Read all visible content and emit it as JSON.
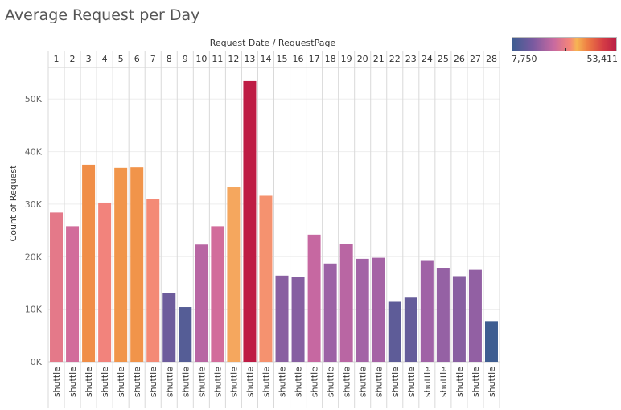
{
  "title": "Average Request per Day",
  "chart_data": {
    "type": "bar",
    "column_header": "Request Date  /  RequestPage",
    "categories": [
      "1",
      "2",
      "3",
      "4",
      "5",
      "6",
      "7",
      "8",
      "9",
      "10",
      "11",
      "12",
      "13",
      "14",
      "15",
      "16",
      "17",
      "18",
      "19",
      "20",
      "21",
      "22",
      "23",
      "24",
      "25",
      "26",
      "27",
      "28"
    ],
    "sub_label": "shuttle",
    "values": [
      28400,
      25800,
      37500,
      30300,
      36900,
      37000,
      31000,
      13100,
      10400,
      22300,
      25800,
      33200,
      53411,
      31600,
      16400,
      16100,
      24200,
      18700,
      22400,
      19600,
      19800,
      11400,
      12200,
      19200,
      17900,
      16300,
      17500,
      7750
    ],
    "ylabel": "Count of Request",
    "ylim": [
      0,
      56000
    ],
    "yticks": [
      0,
      10000,
      20000,
      30000,
      40000,
      50000
    ],
    "ytick_labels": [
      "0K",
      "10K",
      "20K",
      "30K",
      "40K",
      "50K"
    ],
    "grid": true,
    "legend": {
      "placement": "top-right",
      "min_label": "7,750",
      "max_label": "53,411",
      "min": 7750,
      "max": 53411
    }
  }
}
